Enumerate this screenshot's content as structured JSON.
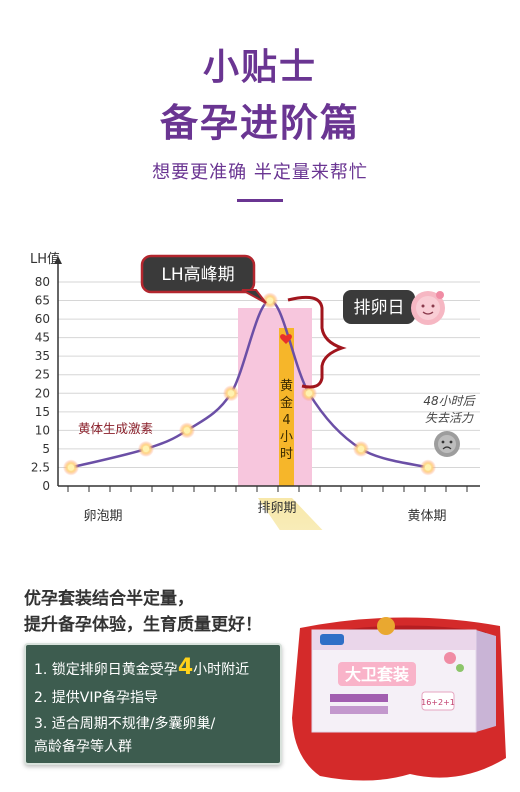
{
  "header": {
    "title_line1": "小贴士",
    "title_line2": "备孕进阶篇",
    "subtitle": "想要更准确 半定量来帮忙"
  },
  "colors": {
    "accent_purple": "#6a3592",
    "curve": "#6b4fa6",
    "pink_band": "#f7c6dd",
    "gold_band": "#f6b62a",
    "feature_bg": "#3d5c4f",
    "highlight": "#ffd21a"
  },
  "chart_data": {
    "type": "line",
    "ylabel": "LH值",
    "y_ticks": [
      "0",
      "2.5",
      "5",
      "10",
      "15",
      "20",
      "25",
      "35",
      "45",
      "60",
      "65",
      "80"
    ],
    "x_phase_labels": [
      "卵泡期",
      "排卵期",
      "黄体期"
    ],
    "series": [
      {
        "values": [
          2.5,
          5,
          10,
          20,
          65,
          20,
          5,
          2.5
        ]
      }
    ],
    "peak_label": "LH高峰期",
    "ovulation_label": "排卵日",
    "golden_band_text": [
      "黄",
      "金",
      "4",
      "小",
      "时"
    ],
    "progesterone_label": "黄体生成激素",
    "egg_note_line1": "48小时后",
    "egg_note_line2": "失去活力",
    "grid": true
  },
  "promo": {
    "line1": "优孕套装结合半定量，",
    "line2": "提升备孕体验，生育质量更好！"
  },
  "features": {
    "f1_prefix": "1. 锁定排卵日黄金受孕",
    "f1_highlight": "4",
    "f1_suffix": "小时附近",
    "f2": "2. 提供VIP备孕指导",
    "f3_line1": "3. 适合周期不规律/多囊卵巢/",
    "f3_line2": "高龄备孕等人群"
  },
  "product": {
    "brand": "大卫套装",
    "box_badge": "16+2+1"
  }
}
